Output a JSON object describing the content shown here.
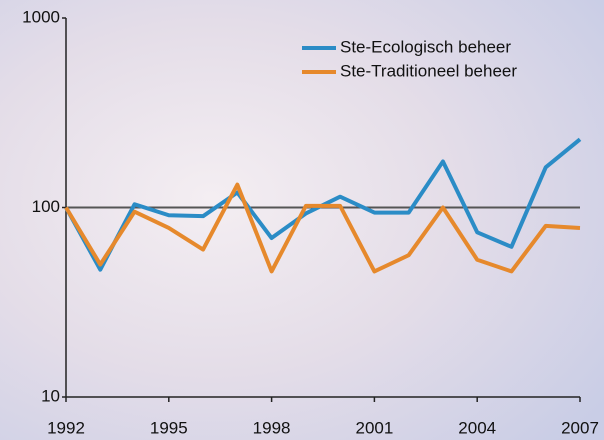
{
  "chart_data": {
    "type": "line",
    "log_y": true,
    "x": [
      1992,
      1993,
      1994,
      1995,
      1996,
      1997,
      1998,
      1999,
      2000,
      2001,
      2002,
      2003,
      2004,
      2005,
      2006,
      2007
    ],
    "series": [
      {
        "name": "Ste-Ecologisch beheer",
        "color": "#2b8cc6",
        "values": [
          100,
          47,
          104,
          91,
          90,
          120,
          69,
          93,
          114,
          94,
          94,
          175,
          74,
          62,
          163,
          229
        ]
      },
      {
        "name": "Ste-Traditioneel beheer",
        "color": "#e6892c",
        "values": [
          100,
          50,
          95,
          78,
          60,
          132,
          46,
          102,
          102,
          46,
          56,
          100,
          53,
          46,
          80,
          78
        ]
      }
    ],
    "xlim": [
      1992,
      2007
    ],
    "xticks": [
      1992,
      1995,
      1998,
      2001,
      2004,
      2007
    ],
    "ylim": [
      10,
      1000
    ],
    "yticks": [
      10,
      100,
      1000
    ],
    "hline": 100,
    "legend": "top-right"
  }
}
